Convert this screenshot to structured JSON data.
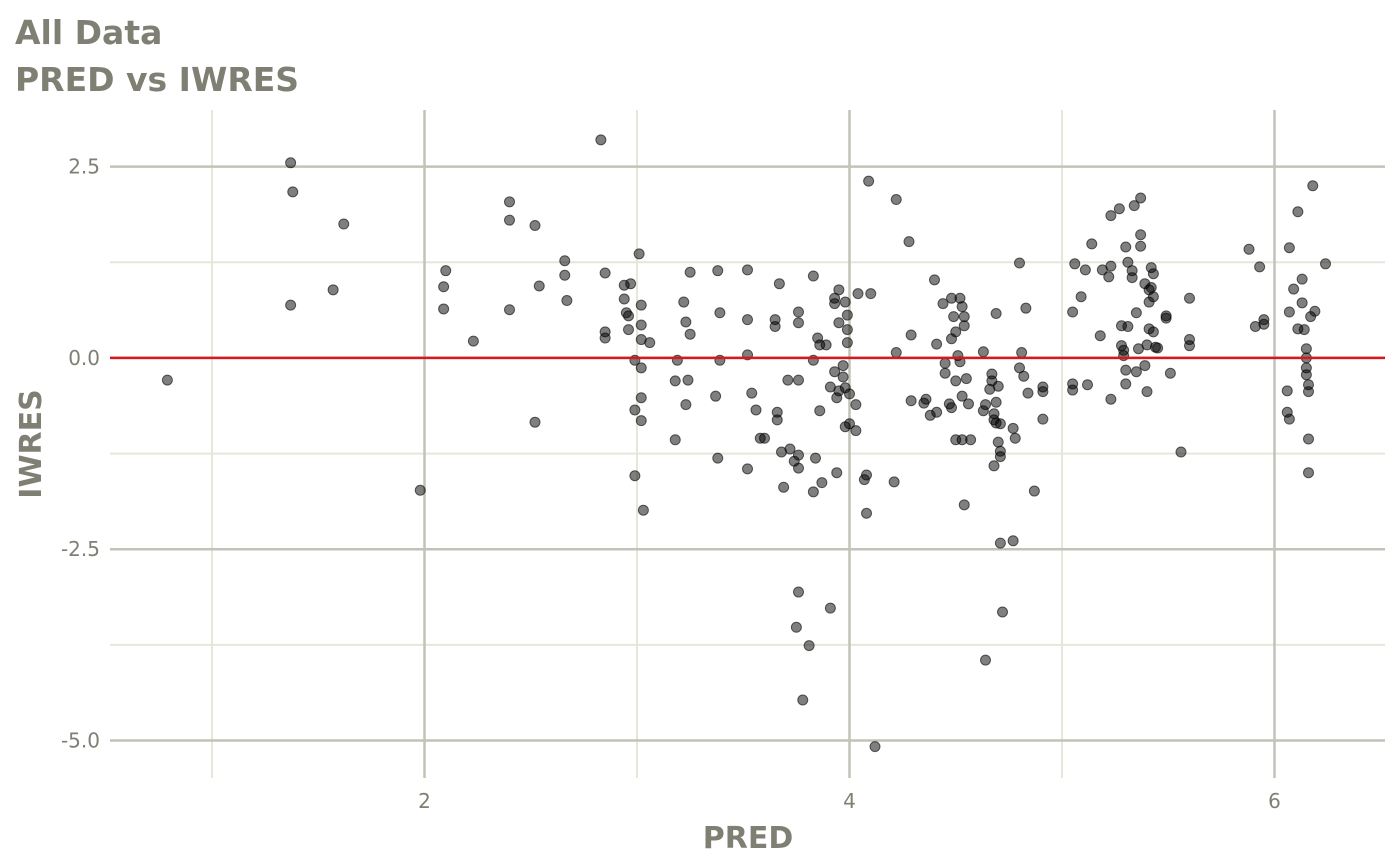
{
  "chart_data": {
    "type": "scatter",
    "title": "All Data",
    "subtitle": "PRED vs IWRES",
    "x_label": "PRED",
    "y_label": "IWRES",
    "xlim": [
      0.52,
      6.52
    ],
    "ylim": [
      -5.49,
      3.24
    ],
    "xticks": [
      2,
      4,
      6
    ],
    "yticks": [
      2.5,
      {
        "value": 0,
        "label": "0.0"
      },
      -2.5,
      {
        "value": -5,
        "label": "-5.0"
      }
    ],
    "minor_xticks": [
      1,
      3,
      5
    ],
    "minor_yticks": [
      1.25,
      -1.25,
      -3.75
    ],
    "grid": true,
    "color": "#000000",
    "hline": 0,
    "hline_color": "#d7191c",
    "x": [
      0.79,
      1.37,
      1.38,
      1.37,
      1.57,
      1.62,
      1.98,
      2.09,
      2.09,
      2.1,
      2.23,
      2.4,
      2.4,
      2.4,
      2.52,
      2.54,
      2.52,
      2.66,
      2.66,
      2.67,
      2.83,
      2.85,
      2.85,
      2.85,
      2.94,
      2.94,
      2.95,
      2.96,
      2.97,
      2.96,
      2.99,
      2.99,
      2.99,
      3.01,
      3.02,
      3.02,
      3.02,
      3.02,
      3.02,
      3.02,
      3.03,
      3.06,
      3.19,
      3.18,
      3.18,
      3.22,
      3.23,
      3.24,
      3.23,
      3.25,
      3.25,
      3.38,
      3.39,
      3.39,
      3.37,
      3.38,
      3.52,
      3.52,
      3.52,
      3.52,
      3.54,
      3.56,
      3.58,
      3.6,
      3.67,
      3.65,
      3.65,
      3.66,
      3.66,
      3.68,
      3.69,
      3.71,
      3.72,
      3.74,
      3.76,
      3.76,
      3.76,
      3.76,
      3.76,
      3.76,
      3.75,
      3.78,
      3.81,
      3.83,
      3.83,
      3.85,
      3.84,
      3.83,
      3.86,
      3.86,
      3.87,
      3.89,
      3.91,
      3.91,
      3.93,
      3.93,
      3.93,
      3.94,
      3.95,
      3.94,
      3.95,
      3.95,
      3.97,
      3.97,
      3.98,
      3.98,
      3.98,
      3.99,
      3.99,
      3.99,
      4.0,
      4.0,
      4.03,
      4.04,
      4.03,
      4.07,
      4.08,
      4.08,
      4.09,
      4.1,
      4.12,
      4.22,
      4.22,
      4.21,
      4.28,
      4.29,
      4.29,
      4.35,
      4.36,
      4.38,
      4.4,
      4.41,
      4.41,
      4.44,
      4.45,
      4.45,
      4.47,
      4.48,
      4.48,
      4.48,
      4.49,
      4.5,
      4.5,
      4.5,
      4.51,
      4.52,
      4.52,
      4.53,
      4.53,
      4.54,
      4.54,
      4.53,
      4.54,
      4.55,
      4.56,
      4.57,
      4.63,
      4.63,
      4.64,
      4.64,
      4.66,
      4.67,
      4.67,
      4.68,
      4.68,
      4.68,
      4.69,
      4.69,
      4.7,
      4.69,
      4.7,
      4.71,
      4.71,
      4.71,
      4.71,
      4.72,
      4.77,
      4.78,
      4.77,
      4.8,
      4.81,
      4.8,
      4.82,
      4.83,
      4.84,
      4.87,
      4.91,
      4.91,
      4.91,
      5.05,
      5.05,
      5.06,
      5.05,
      5.09,
      5.11,
      5.12,
      5.14,
      5.18,
      5.19,
      5.22,
      5.23,
      5.23,
      5.23,
      5.27,
      5.28,
      5.28,
      5.29,
      5.29,
      5.3,
      5.3,
      5.3,
      5.31,
      5.31,
      5.33,
      5.33,
      5.34,
      5.35,
      5.35,
      5.36,
      5.37,
      5.37,
      5.37,
      5.39,
      5.39,
      5.4,
      5.4,
      5.41,
      5.41,
      5.41,
      5.42,
      5.42,
      5.43,
      5.43,
      5.43,
      5.44,
      5.45,
      5.49,
      5.49,
      5.51,
      5.56,
      5.6,
      5.6,
      5.6,
      5.88,
      5.91,
      5.93,
      5.95,
      5.95,
      6.07,
      6.07,
      6.06,
      6.06,
      6.07,
      6.09,
      6.11,
      6.11,
      6.13,
      6.13,
      6.14,
      6.15,
      6.15,
      6.15,
      6.15,
      6.16,
      6.16,
      6.16,
      6.16,
      6.17,
      6.18,
      6.19,
      6.24
    ],
    "values": [
      -0.29,
      2.55,
      2.17,
      0.69,
      0.89,
      1.75,
      -1.73,
      0.64,
      0.93,
      1.14,
      0.22,
      2.04,
      1.8,
      0.63,
      1.73,
      0.94,
      -0.84,
      1.27,
      1.08,
      0.75,
      2.85,
      1.11,
      0.34,
      0.26,
      0.95,
      0.77,
      0.59,
      0.55,
      0.97,
      0.37,
      -0.03,
      -0.68,
      -1.54,
      1.36,
      0.69,
      0.43,
      0.24,
      -0.13,
      -0.52,
      -0.82,
      -1.99,
      0.2,
      -0.03,
      -0.3,
      -1.07,
      0.73,
      0.47,
      -0.29,
      -0.61,
      1.12,
      0.31,
      1.14,
      0.59,
      -0.03,
      -0.5,
      -1.31,
      1.15,
      0.5,
      0.04,
      -1.45,
      -0.46,
      -0.68,
      -1.05,
      -1.05,
      0.97,
      0.5,
      0.41,
      -0.71,
      -0.81,
      -1.23,
      -1.69,
      -0.29,
      -1.19,
      -1.35,
      0.6,
      0.46,
      -0.29,
      -1.44,
      -1.27,
      -3.06,
      -3.52,
      -4.47,
      -3.76,
      1.07,
      -0.03,
      0.26,
      -1.31,
      -1.75,
      0.17,
      -0.69,
      -1.63,
      0.17,
      -0.38,
      -3.27,
      0.78,
      0.71,
      -0.18,
      -0.52,
      -0.43,
      -1.5,
      0.89,
      0.46,
      -0.1,
      -0.25,
      -0.39,
      -0.9,
      0.73,
      0.56,
      0.37,
      0.2,
      -0.47,
      -0.86,
      -0.61,
      0.84,
      -0.95,
      -1.59,
      -1.53,
      -2.03,
      2.31,
      0.84,
      -5.08,
      2.07,
      0.07,
      -1.62,
      1.52,
      0.3,
      -0.56,
      -0.59,
      -0.54,
      -0.75,
      1.02,
      0.18,
      -0.71,
      0.71,
      -0.07,
      -0.2,
      -0.6,
      0.25,
      -0.65,
      0.78,
      0.54,
      0.34,
      -0.3,
      -1.07,
      0.03,
      -0.05,
      0.78,
      0.67,
      -1.07,
      0.54,
      0.42,
      -0.5,
      -1.92,
      -0.27,
      -0.6,
      -1.07,
      0.08,
      -0.69,
      -0.61,
      -3.95,
      -0.41,
      -0.21,
      -0.3,
      -1.41,
      -0.73,
      -0.81,
      0.58,
      -0.58,
      -0.37,
      -0.85,
      -1.1,
      -1.22,
      -1.29,
      -0.86,
      -2.42,
      -3.32,
      -0.92,
      -1.05,
      -2.39,
      1.24,
      0.07,
      -0.13,
      -0.24,
      0.65,
      -0.46,
      -1.74,
      -0.38,
      -0.44,
      -0.8,
      -0.42,
      0.6,
      1.23,
      -0.34,
      0.8,
      1.15,
      -0.35,
      1.49,
      0.29,
      1.15,
      1.06,
      1.2,
      1.86,
      -0.54,
      1.95,
      0.42,
      0.16,
      0.1,
      0.03,
      1.45,
      -0.16,
      -0.34,
      0.41,
      1.25,
      1.14,
      1.05,
      1.99,
      0.59,
      -0.18,
      0.12,
      2.09,
      1.61,
      1.46,
      0.97,
      -0.1,
      -0.44,
      0.17,
      0.73,
      0.89,
      0.38,
      1.18,
      0.92,
      0.8,
      0.34,
      1.1,
      0.14,
      0.13,
      0.55,
      0.52,
      -0.2,
      -1.23,
      0.78,
      0.24,
      0.16,
      1.42,
      0.41,
      1.19,
      0.5,
      0.44,
      1.44,
      0.6,
      -0.43,
      -0.71,
      -0.8,
      0.9,
      1.91,
      0.38,
      1.03,
      0.72,
      0.37,
      0.12,
      -0.13,
      0.0,
      -0.22,
      -0.35,
      -0.44,
      -1.06,
      -1.5,
      0.54,
      2.25,
      0.61,
      1.23
    ]
  }
}
